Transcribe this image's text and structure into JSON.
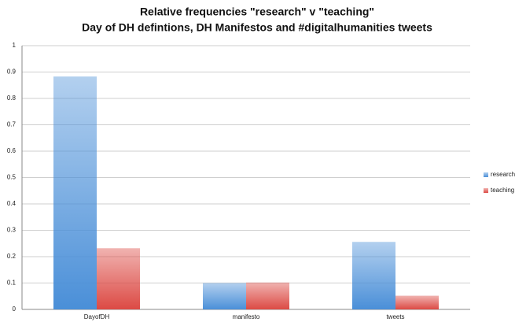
{
  "chart_data": {
    "type": "bar",
    "title": "Relative frequencies \"research\" v \"teaching\"",
    "subtitle": "Day of DH defintions, DH Manifestos and #digitalhumanities tweets",
    "categories": [
      "DayofDH",
      "manifesto",
      "tweets"
    ],
    "series": [
      {
        "name": "research",
        "color": "#4a8fd8",
        "values": [
          0.883,
          0.1,
          0.256
        ]
      },
      {
        "name": "teaching",
        "color": "#dc4a44",
        "values": [
          0.232,
          0.102,
          0.052
        ]
      }
    ],
    "ylim": [
      0,
      1
    ],
    "yticks": [
      0,
      0.1,
      0.2,
      0.3,
      0.4,
      0.5,
      0.6,
      0.7,
      0.8,
      0.9,
      1
    ],
    "grid": true,
    "legend": "right"
  }
}
